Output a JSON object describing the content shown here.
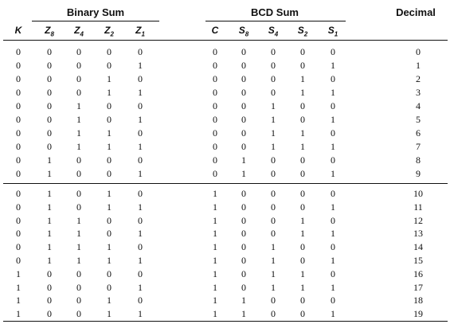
{
  "headers": {
    "binary_group": "Binary Sum",
    "bcd_group": "BCD Sum",
    "decimal_group": "Decimal",
    "binary_cols": [
      {
        "base": "K",
        "sub": ""
      },
      {
        "base": "Z",
        "sub": "8"
      },
      {
        "base": "Z",
        "sub": "4"
      },
      {
        "base": "Z",
        "sub": "2"
      },
      {
        "base": "Z",
        "sub": "1"
      }
    ],
    "bcd_cols": [
      {
        "base": "C",
        "sub": ""
      },
      {
        "base": "S",
        "sub": "8"
      },
      {
        "base": "S",
        "sub": "4"
      },
      {
        "base": "S",
        "sub": "2"
      },
      {
        "base": "S",
        "sub": "1"
      }
    ]
  },
  "rows": [
    {
      "bin": [
        "0",
        "0",
        "0",
        "0",
        "0"
      ],
      "bcd": [
        "0",
        "0",
        "0",
        "0",
        "0"
      ],
      "dec": "0"
    },
    {
      "bin": [
        "0",
        "0",
        "0",
        "0",
        "1"
      ],
      "bcd": [
        "0",
        "0",
        "0",
        "0",
        "1"
      ],
      "dec": "1"
    },
    {
      "bin": [
        "0",
        "0",
        "0",
        "1",
        "0"
      ],
      "bcd": [
        "0",
        "0",
        "0",
        "1",
        "0"
      ],
      "dec": "2"
    },
    {
      "bin": [
        "0",
        "0",
        "0",
        "1",
        "1"
      ],
      "bcd": [
        "0",
        "0",
        "0",
        "1",
        "1"
      ],
      "dec": "3"
    },
    {
      "bin": [
        "0",
        "0",
        "1",
        "0",
        "0"
      ],
      "bcd": [
        "0",
        "0",
        "1",
        "0",
        "0"
      ],
      "dec": "4"
    },
    {
      "bin": [
        "0",
        "0",
        "1",
        "0",
        "1"
      ],
      "bcd": [
        "0",
        "0",
        "1",
        "0",
        "1"
      ],
      "dec": "5"
    },
    {
      "bin": [
        "0",
        "0",
        "1",
        "1",
        "0"
      ],
      "bcd": [
        "0",
        "0",
        "1",
        "1",
        "0"
      ],
      "dec": "6"
    },
    {
      "bin": [
        "0",
        "0",
        "1",
        "1",
        "1"
      ],
      "bcd": [
        "0",
        "0",
        "1",
        "1",
        "1"
      ],
      "dec": "7"
    },
    {
      "bin": [
        "0",
        "1",
        "0",
        "0",
        "0"
      ],
      "bcd": [
        "0",
        "1",
        "0",
        "0",
        "0"
      ],
      "dec": "8"
    },
    {
      "bin": [
        "0",
        "1",
        "0",
        "0",
        "1"
      ],
      "bcd": [
        "0",
        "1",
        "0",
        "0",
        "1"
      ],
      "dec": "9"
    },
    {
      "bin": [
        "0",
        "1",
        "0",
        "1",
        "0"
      ],
      "bcd": [
        "1",
        "0",
        "0",
        "0",
        "0"
      ],
      "dec": "10"
    },
    {
      "bin": [
        "0",
        "1",
        "0",
        "1",
        "1"
      ],
      "bcd": [
        "1",
        "0",
        "0",
        "0",
        "1"
      ],
      "dec": "11"
    },
    {
      "bin": [
        "0",
        "1",
        "1",
        "0",
        "0"
      ],
      "bcd": [
        "1",
        "0",
        "0",
        "1",
        "0"
      ],
      "dec": "12"
    },
    {
      "bin": [
        "0",
        "1",
        "1",
        "0",
        "1"
      ],
      "bcd": [
        "1",
        "0",
        "0",
        "1",
        "1"
      ],
      "dec": "13"
    },
    {
      "bin": [
        "0",
        "1",
        "1",
        "1",
        "0"
      ],
      "bcd": [
        "1",
        "0",
        "1",
        "0",
        "0"
      ],
      "dec": "14"
    },
    {
      "bin": [
        "0",
        "1",
        "1",
        "1",
        "1"
      ],
      "bcd": [
        "1",
        "0",
        "1",
        "0",
        "1"
      ],
      "dec": "15"
    },
    {
      "bin": [
        "1",
        "0",
        "0",
        "0",
        "0"
      ],
      "bcd": [
        "1",
        "0",
        "1",
        "1",
        "0"
      ],
      "dec": "16"
    },
    {
      "bin": [
        "1",
        "0",
        "0",
        "0",
        "1"
      ],
      "bcd": [
        "1",
        "0",
        "1",
        "1",
        "1"
      ],
      "dec": "17"
    },
    {
      "bin": [
        "1",
        "0",
        "0",
        "1",
        "0"
      ],
      "bcd": [
        "1",
        "1",
        "0",
        "0",
        "0"
      ],
      "dec": "18"
    },
    {
      "bin": [
        "1",
        "0",
        "0",
        "1",
        "1"
      ],
      "bcd": [
        "1",
        "1",
        "0",
        "0",
        "1"
      ],
      "dec": "19"
    }
  ]
}
